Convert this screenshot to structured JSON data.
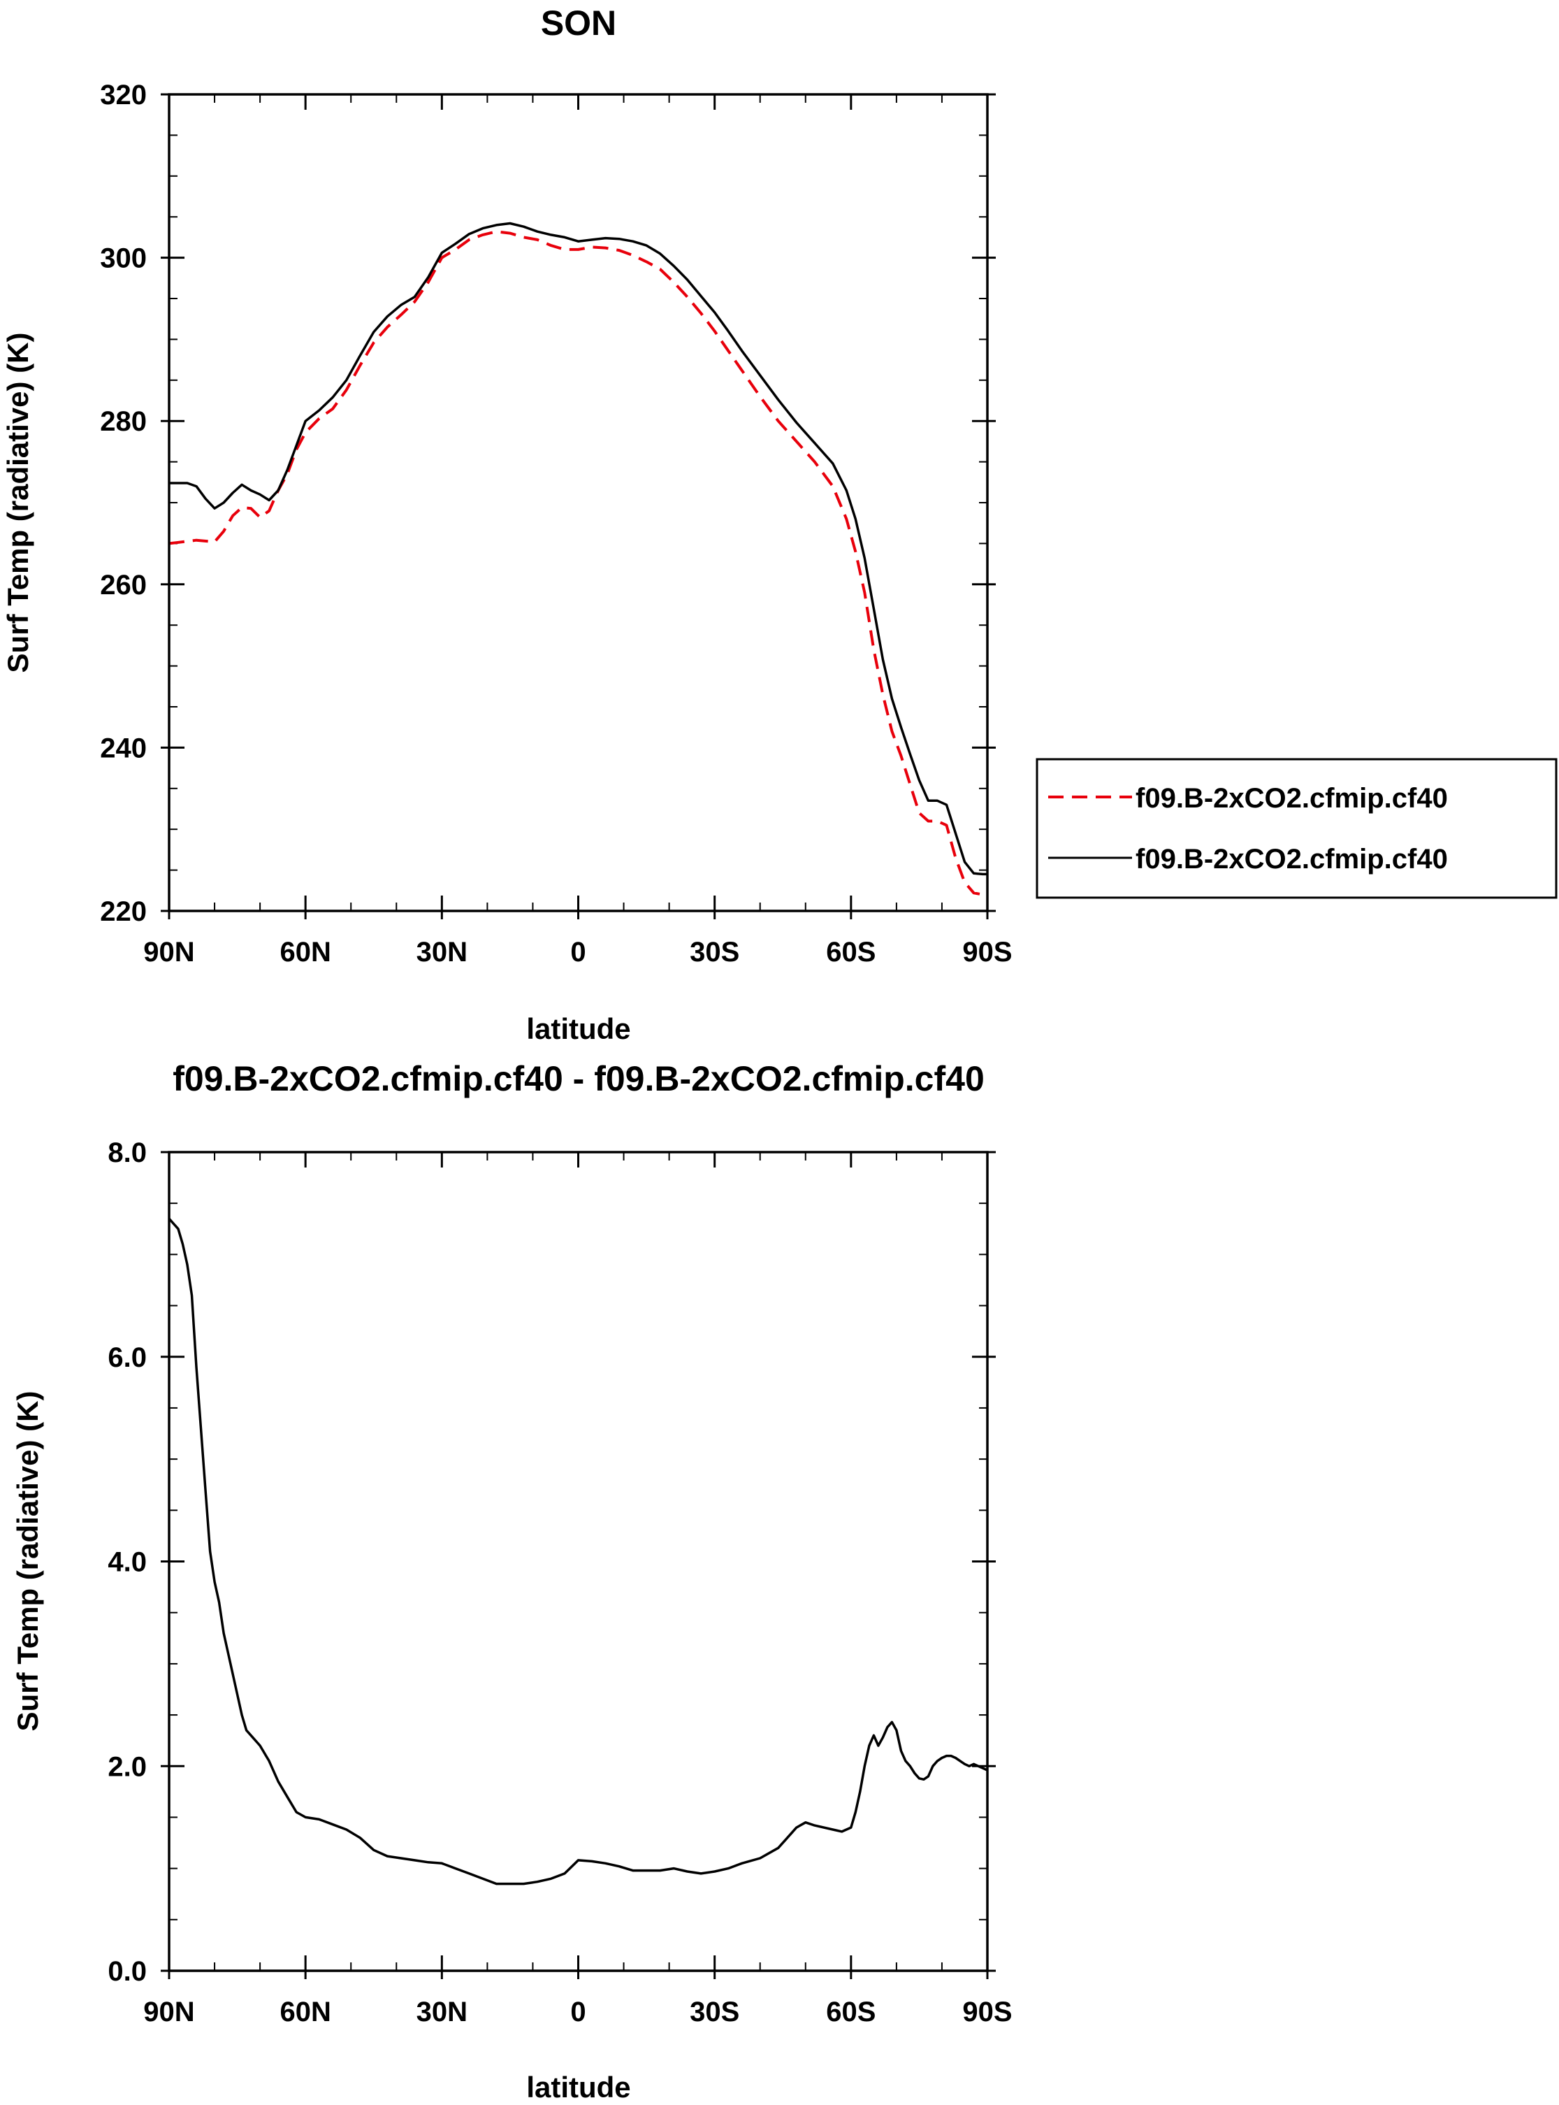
{
  "chart_data": [
    {
      "type": "line",
      "title": "SON",
      "xlabel": "latitude",
      "ylabel": "Surf Temp (radiative) (K)",
      "xlim": [
        90,
        -90
      ],
      "ylim": [
        220,
        320
      ],
      "x_ticks": [
        90,
        60,
        30,
        0,
        -30,
        -60,
        -90
      ],
      "x_tick_labels": [
        "90N",
        "60N",
        "30N",
        "0",
        "30S",
        "60S",
        "90S"
      ],
      "y_ticks": [
        220,
        240,
        260,
        280,
        300,
        320
      ],
      "y_tick_labels": [
        "220",
        "240",
        "260",
        "280",
        "300",
        "320"
      ],
      "legend_position": "right",
      "series": [
        {
          "name": "f09.B-2xCO2.cfmip.cf40",
          "color": "#e8000b",
          "style": "dashed",
          "x": [
            90,
            84,
            80,
            78,
            76,
            74,
            72,
            70,
            68,
            66,
            64,
            62,
            60,
            57,
            54,
            51,
            48,
            45,
            42,
            39,
            36,
            33,
            30,
            27,
            24,
            21,
            18,
            15,
            12,
            9,
            6,
            3,
            0,
            -3,
            -6,
            -9,
            -12,
            -15,
            -18,
            -21,
            -24,
            -27,
            -30,
            -33,
            -36,
            -40,
            -44,
            -48,
            -52,
            -56,
            -59,
            -61,
            -63,
            -65,
            -67,
            -69,
            -71,
            -73,
            -75,
            -77,
            -79,
            -81,
            -83,
            -85,
            -87,
            -89,
            -90
          ],
          "y": [
            265.0,
            265.4,
            265.2,
            266.5,
            268.4,
            269.4,
            269.3,
            268.2,
            269.0,
            271.5,
            273.5,
            276.5,
            278.6,
            280.3,
            281.5,
            283.8,
            286.8,
            289.6,
            291.5,
            293.0,
            294.6,
            297.0,
            300.0,
            301.0,
            302.2,
            302.8,
            303.2,
            303.0,
            302.5,
            302.2,
            301.5,
            301.0,
            301.0,
            301.3,
            301.2,
            300.9,
            300.3,
            299.5,
            298.6,
            297.0,
            295.2,
            293.2,
            291.0,
            288.6,
            286.2,
            283.0,
            280.0,
            277.5,
            275.0,
            272.0,
            268.0,
            264.0,
            259.0,
            252.0,
            246.5,
            242.0,
            239.0,
            235.5,
            232.0,
            231.0,
            231.0,
            230.5,
            226.5,
            223.5,
            222.2,
            222.0,
            222.0
          ]
        },
        {
          "name": "f09.B-2xCO2.cfmip.cf40",
          "color": "#000000",
          "style": "solid",
          "x": [
            90,
            86,
            84,
            82,
            80,
            78,
            76,
            74,
            72,
            70,
            68,
            66,
            64,
            62,
            60,
            57,
            54,
            51,
            48,
            45,
            42,
            39,
            36,
            33,
            30,
            27,
            24,
            21,
            18,
            15,
            12,
            9,
            6,
            3,
            0,
            -3,
            -6,
            -9,
            -12,
            -15,
            -18,
            -21,
            -24,
            -27,
            -30,
            -33,
            -36,
            -40,
            -44,
            -48,
            -52,
            -56,
            -59,
            -61,
            -63,
            -65,
            -67,
            -69,
            -71,
            -73,
            -75,
            -77,
            -79,
            -81,
            -83,
            -85,
            -87,
            -89,
            -90
          ],
          "y": [
            272.4,
            272.4,
            272.0,
            270.5,
            269.3,
            270.0,
            271.2,
            272.2,
            271.5,
            271.0,
            270.3,
            271.5,
            274.0,
            277.0,
            280.0,
            281.3,
            282.9,
            285.0,
            288.0,
            290.9,
            292.8,
            294.2,
            295.2,
            297.6,
            300.6,
            301.7,
            302.9,
            303.6,
            304.0,
            304.2,
            303.8,
            303.2,
            302.8,
            302.5,
            302.0,
            302.2,
            302.4,
            302.3,
            302.0,
            301.5,
            300.5,
            299.0,
            297.3,
            295.3,
            293.3,
            291.0,
            288.6,
            285.6,
            282.6,
            279.8,
            277.3,
            274.8,
            271.5,
            268.0,
            263.2,
            257.0,
            250.8,
            246.0,
            242.5,
            239.2,
            236.0,
            233.5,
            233.5,
            233.0,
            229.5,
            226.0,
            224.6,
            224.5,
            224.5
          ]
        }
      ]
    },
    {
      "type": "line",
      "title": "f09.B-2xCO2.cfmip.cf40 - f09.B-2xCO2.cfmip.cf40",
      "xlabel": "latitude",
      "ylabel": "Surf Temp (radiative) (K)",
      "xlim": [
        90,
        -90
      ],
      "ylim": [
        0.0,
        8.0
      ],
      "x_ticks": [
        90,
        60,
        30,
        0,
        -30,
        -60,
        -90
      ],
      "x_tick_labels": [
        "90N",
        "60N",
        "30N",
        "0",
        "30S",
        "60S",
        "90S"
      ],
      "y_ticks": [
        0,
        2,
        4,
        6,
        8
      ],
      "y_tick_labels": [
        "0.0",
        "2.0",
        "4.0",
        "6.0",
        "8.0"
      ],
      "series": [
        {
          "color": "#000000",
          "style": "solid",
          "x": [
            90,
            89,
            88,
            87,
            86,
            85,
            84,
            83,
            82,
            81,
            80,
            79,
            78,
            77,
            76,
            75,
            74,
            73,
            72,
            70,
            68,
            66,
            64,
            62,
            60,
            57,
            54,
            51,
            48,
            45,
            42,
            39,
            36,
            33,
            30,
            27,
            24,
            21,
            18,
            15,
            12,
            9,
            6,
            3,
            0,
            -3,
            -6,
            -9,
            -12,
            -15,
            -18,
            -21,
            -24,
            -27,
            -30,
            -33,
            -36,
            -40,
            -44,
            -46,
            -48,
            -50,
            -52,
            -56,
            -58,
            -59,
            -60,
            -61,
            -62,
            -63,
            -64,
            -65,
            -66,
            -67,
            -68,
            -69,
            -70,
            -71,
            -72,
            -73,
            -74,
            -75,
            -76,
            -77,
            -78,
            -79,
            -80,
            -81,
            -82,
            -83,
            -84,
            -85,
            -86,
            -87,
            -88,
            -89,
            -90
          ],
          "y": [
            7.35,
            7.3,
            7.25,
            7.1,
            6.9,
            6.6,
            5.9,
            5.3,
            4.7,
            4.1,
            3.8,
            3.6,
            3.3,
            3.1,
            2.9,
            2.7,
            2.5,
            2.35,
            2.3,
            2.2,
            2.05,
            1.85,
            1.7,
            1.55,
            1.5,
            1.48,
            1.43,
            1.38,
            1.3,
            1.18,
            1.12,
            1.1,
            1.08,
            1.06,
            1.05,
            1.0,
            0.95,
            0.9,
            0.85,
            0.85,
            0.85,
            0.87,
            0.9,
            0.95,
            1.08,
            1.07,
            1.05,
            1.02,
            0.98,
            0.98,
            0.98,
            1.0,
            0.97,
            0.95,
            0.97,
            1.0,
            1.05,
            1.1,
            1.2,
            1.3,
            1.4,
            1.45,
            1.42,
            1.38,
            1.36,
            1.38,
            1.4,
            1.55,
            1.75,
            2.0,
            2.2,
            2.3,
            2.2,
            2.28,
            2.38,
            2.43,
            2.35,
            2.15,
            2.05,
            2.0,
            1.93,
            1.88,
            1.87,
            1.9,
            2.0,
            2.05,
            2.08,
            2.1,
            2.1,
            2.08,
            2.05,
            2.02,
            2.0,
            2.02,
            2.0,
            1.98,
            1.96
          ]
        }
      ]
    }
  ]
}
